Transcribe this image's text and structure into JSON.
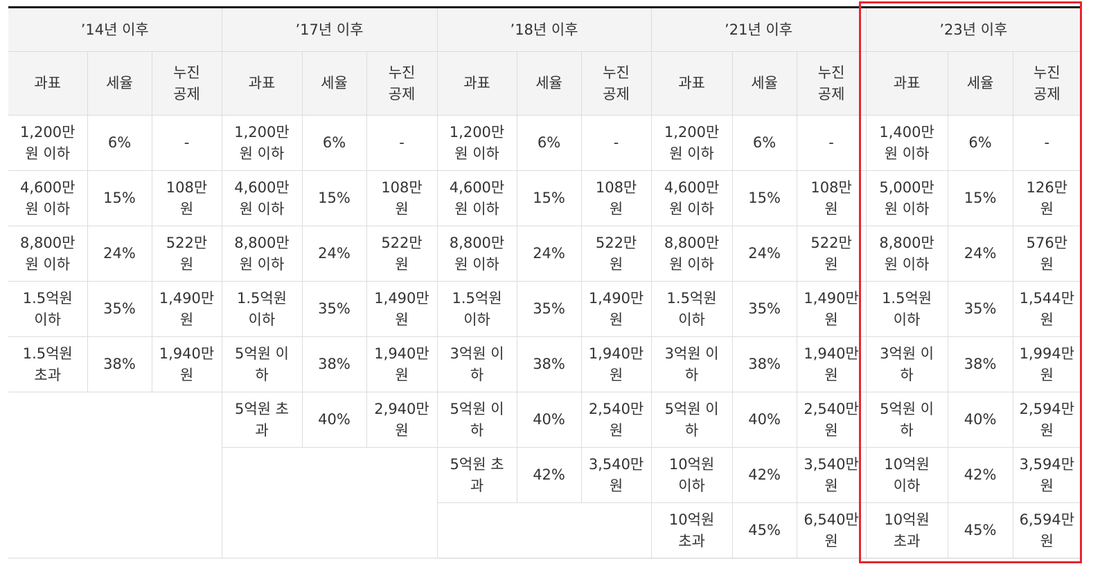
{
  "colors": {
    "highlight": "#e8252f",
    "header_bg": "#f4f4f4",
    "border": "#dcdcdc"
  },
  "periods": [
    {
      "title": "’14년 이후",
      "headers": [
        "과표",
        "세율",
        "누진\n공제"
      ],
      "rows": [
        [
          "1,200만\n원 이하",
          "6%",
          "-"
        ],
        [
          "4,600만\n원 이하",
          "15%",
          "108만\n원"
        ],
        [
          "8,800만\n원 이하",
          "24%",
          "522만\n원"
        ],
        [
          "1.5억원\n이하",
          "35%",
          "1,490만\n원"
        ],
        [
          "1.5억원\n초과",
          "38%",
          "1,940만\n원"
        ]
      ]
    },
    {
      "title": "’17년 이후",
      "headers": [
        "과표",
        "세율",
        "누진\n공제"
      ],
      "rows": [
        [
          "1,200만\n원 이하",
          "6%",
          "-"
        ],
        [
          "4,600만\n원 이하",
          "15%",
          "108만\n원"
        ],
        [
          "8,800만\n원 이하",
          "24%",
          "522만\n원"
        ],
        [
          "1.5억원\n이하",
          "35%",
          "1,490만\n원"
        ],
        [
          "5억원 이\n하",
          "38%",
          "1,940만\n원"
        ],
        [
          "5억원 초\n과",
          "40%",
          "2,940만\n원"
        ]
      ]
    },
    {
      "title": "’18년 이후",
      "headers": [
        "과표",
        "세율",
        "누진\n공제"
      ],
      "rows": [
        [
          "1,200만\n원 이하",
          "6%",
          "-"
        ],
        [
          "4,600만\n원 이하",
          "15%",
          "108만\n원"
        ],
        [
          "8,800만\n원 이하",
          "24%",
          "522만\n원"
        ],
        [
          "1.5억원\n이하",
          "35%",
          "1,490만\n원"
        ],
        [
          "3억원 이\n하",
          "38%",
          "1,940만\n원"
        ],
        [
          "5억원 이\n하",
          "40%",
          "2,540만\n원"
        ],
        [
          "5억원 초\n과",
          "42%",
          "3,540만\n원"
        ]
      ]
    },
    {
      "title": "’21년 이후",
      "headers": [
        "과표",
        "세율",
        "누진\n공제"
      ],
      "rows": [
        [
          "1,200만\n원 이하",
          "6%",
          "-"
        ],
        [
          "4,600만\n원 이하",
          "15%",
          "108만\n원"
        ],
        [
          "8,800만\n원 이하",
          "24%",
          "522만\n원"
        ],
        [
          "1.5억원\n이하",
          "35%",
          "1,490만\n원"
        ],
        [
          "3억원 이\n하",
          "38%",
          "1,940만\n원"
        ],
        [
          "5억원 이\n하",
          "40%",
          "2,540만\n원"
        ],
        [
          "10억원\n이하",
          "42%",
          "3,540만\n원"
        ],
        [
          "10억원\n초과",
          "45%",
          "6,540만\n원"
        ]
      ]
    },
    {
      "title": "’23년 이후",
      "headers": [
        "과표",
        "세율",
        "누진\n공제"
      ],
      "rows": [
        [
          "1,400만\n원 이하",
          "6%",
          "-"
        ],
        [
          "5,000만\n원 이하",
          "15%",
          "126만\n원"
        ],
        [
          "8,800만\n원 이하",
          "24%",
          "576만\n원"
        ],
        [
          "1.5억원\n이하",
          "35%",
          "1,544만\n원"
        ],
        [
          "3억원 이\n하",
          "38%",
          "1,994만\n원"
        ],
        [
          "5억원 이\n하",
          "40%",
          "2,594만\n원"
        ],
        [
          "10억원\n이하",
          "42%",
          "3,594만\n원"
        ],
        [
          "10억원\n초과",
          "45%",
          "6,594만\n원"
        ]
      ]
    }
  ]
}
